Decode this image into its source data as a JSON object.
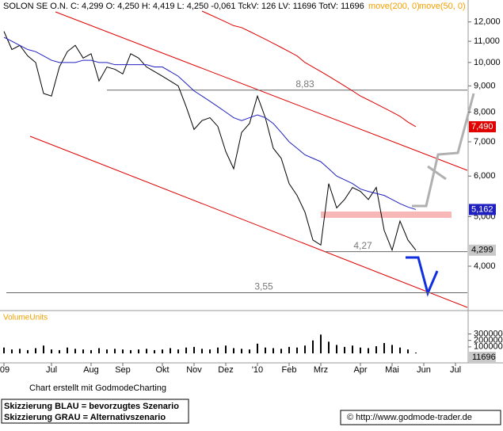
{
  "header": "SOLON SE O.N. C: 4,299 O: 4,250 H: 4,419 L: 4,250 -0,061 TckV: 126 LV: 11696 TotV: 11696",
  "chart_data": {
    "type": "line",
    "categories": [
      "'09",
      null,
      null,
      null,
      null,
      null,
      "Jul",
      null,
      null,
      null,
      null,
      "Aug",
      null,
      null,
      null,
      "Sep",
      null,
      null,
      null,
      null,
      "Okt",
      null,
      null,
      null,
      "Nov",
      null,
      null,
      null,
      "Dez",
      null,
      null,
      null,
      "'10",
      null,
      null,
      null,
      "Feb",
      null,
      null,
      null,
      "Mrz",
      null,
      null,
      null,
      null,
      "Apr",
      null,
      null,
      null,
      "Mai",
      null,
      null,
      null,
      "Jun",
      null,
      null,
      null,
      "Jul"
    ],
    "series": [
      {
        "color": "#000000",
        "values": [
          11.5,
          10.6,
          10.8,
          10.3,
          10.0,
          8.7,
          8.6,
          9.8,
          10.5,
          10.8,
          10.2,
          10.4,
          9.2,
          9.8,
          9.7,
          9.5,
          10.4,
          10.2,
          9.8,
          9.6,
          9.4,
          9.2,
          9.0,
          8.2,
          7.4,
          7.7,
          7.8,
          7.5,
          6.7,
          6.2,
          7.3,
          7.6,
          8.6,
          7.8,
          6.8,
          6.5,
          5.8,
          5.5,
          5.1,
          4.5,
          4.4,
          5.8,
          5.2,
          5.4,
          5.7,
          5.6,
          5.4,
          5.7,
          4.7,
          4.3,
          4.9,
          4.5,
          4.299,
          null,
          null,
          null,
          null,
          null
        ]
      },
      {
        "name": "move(200, 0)",
        "color": "#e00000",
        "values": [
          null,
          null,
          null,
          null,
          null,
          null,
          null,
          null,
          null,
          null,
          null,
          null,
          null,
          null,
          null,
          null,
          null,
          null,
          null,
          null,
          null,
          null,
          null,
          null,
          null,
          12.6,
          12.4,
          12.2,
          12.0,
          11.8,
          11.7,
          11.5,
          11.3,
          11.1,
          10.9,
          10.7,
          10.5,
          10.3,
          10.0,
          9.8,
          9.6,
          9.4,
          9.2,
          9.0,
          8.8,
          8.6,
          8.45,
          8.3,
          8.15,
          8.0,
          7.85,
          7.65,
          7.49,
          null,
          null,
          null,
          null,
          null
        ]
      },
      {
        "name": "move(50, 0)",
        "color": "#2020c0",
        "values": [
          11.2,
          11.0,
          10.8,
          10.6,
          10.5,
          10.3,
          10.1,
          10.0,
          10.0,
          10.0,
          10.1,
          10.1,
          10.0,
          10.0,
          9.9,
          9.9,
          9.9,
          9.9,
          9.9,
          9.8,
          9.8,
          9.6,
          9.4,
          9.1,
          8.8,
          8.6,
          8.4,
          8.2,
          8.0,
          7.8,
          7.7,
          7.8,
          7.9,
          7.8,
          7.6,
          7.3,
          7.0,
          6.8,
          6.6,
          6.5,
          6.4,
          6.2,
          6.0,
          5.9,
          5.8,
          5.66,
          5.6,
          5.55,
          5.5,
          5.4,
          5.3,
          5.22,
          5.162,
          null,
          null,
          null,
          null,
          null
        ]
      }
    ],
    "log_scale": true,
    "ylim": [
      3.3,
      12.6
    ],
    "yticks": [
      {
        "value": 4,
        "label": "4,000"
      },
      {
        "value": 5,
        "label": "5,000"
      },
      {
        "value": 6,
        "label": "6,000"
      },
      {
        "value": 7,
        "label": "7,000"
      },
      {
        "value": 8,
        "label": "8,000"
      },
      {
        "value": 9,
        "label": "9,000"
      },
      {
        "value": 10,
        "label": "10,000"
      },
      {
        "value": 11,
        "label": "11,000"
      },
      {
        "value": 12,
        "label": "12,000"
      }
    ],
    "levels": [
      {
        "value": 8.83,
        "label": "8,83"
      },
      {
        "value": 4.27,
        "label": "4,27"
      },
      {
        "value": 3.55,
        "label": "3,55"
      }
    ],
    "price_labels": [
      {
        "value": 7.49,
        "label": "7,490",
        "color": "#e00000"
      },
      {
        "value": 5.162,
        "label": "5,162",
        "color": "#2020c0"
      },
      {
        "value": 4.299,
        "label": "4,299",
        "color": "#c8c8c8"
      }
    ],
    "volume": {
      "label": "VolumeUnits",
      "color": "#000000",
      "values": [
        90000,
        60000,
        70000,
        50000,
        80000,
        120000,
        60000,
        50000,
        90000,
        70000,
        60000,
        50000,
        80000,
        60000,
        70000,
        60000,
        50000,
        60000,
        70000,
        50000,
        60000,
        80000,
        60000,
        90000,
        100000,
        70000,
        60000,
        90000,
        120000,
        80000,
        70000,
        60000,
        150000,
        90000,
        80000,
        70000,
        100000,
        90000,
        120000,
        200000,
        290000,
        180000,
        130000,
        100000,
        120000,
        90000,
        80000,
        110000,
        160000,
        130000,
        90000,
        60000,
        11696
      ],
      "ylim": [
        0,
        612500
      ],
      "yticks": [
        100000,
        200000,
        300000
      ],
      "last": 11696
    }
  },
  "footer": {
    "credit": "Chart erstellt mit GodmodeCharting",
    "note_blue": "Skizzierung BLAU = bevorzugtes Szenario",
    "note_gray": "Skizzierung GRAU = Alternativszenario",
    "url": "© http://www.godmode-trader.de"
  }
}
